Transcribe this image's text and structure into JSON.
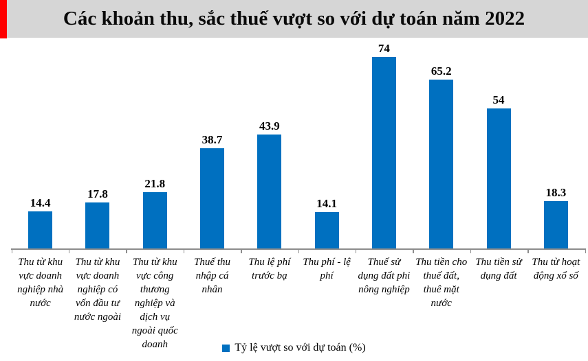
{
  "title": {
    "text": "Các khoản thu, sắc thuế vượt so với dự toán năm 2022"
  },
  "colors": {
    "bar": "#0070c0",
    "title_band": "#d6d6d6",
    "accent_red": "#fe0000",
    "axis": "#8c8c8c"
  },
  "legend": {
    "label": "Tỷ lệ vượt so với dự toán (%)"
  },
  "chart_data": {
    "type": "bar",
    "title": "Các khoản thu, sắc thuế vượt so với dự toán năm 2022",
    "categories": [
      "Thu từ khu vực doanh nghiệp nhà nước",
      "Thu từ khu vực doanh nghiệp có vốn đầu tư nước ngoài",
      "Thu từ khu vực công thương nghiệp và dịch vụ ngoài quốc doanh",
      "Thuế thu nhập cá nhân",
      "Thu lệ phí trước bạ",
      "Thu phí - lệ phí",
      "Thuế sử dụng đất phi nông nghiệp",
      "Thu tiền cho thuế đất, thuê mặt nước",
      "Thu tiền sử dụng đất",
      "Thu từ hoạt động xổ số"
    ],
    "values": [
      14.4,
      17.8,
      21.8,
      38.7,
      43.9,
      14.1,
      74,
      65.2,
      54,
      18.3
    ],
    "series_name": "Tỷ lệ vượt so với dự toán (%)",
    "xlabel": "",
    "ylabel": "",
    "ylim": [
      0,
      80
    ],
    "grid": false,
    "y_axis_visible": false,
    "data_labels": true,
    "legend_position": "bottom"
  }
}
